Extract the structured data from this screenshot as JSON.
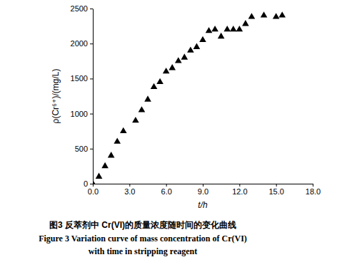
{
  "chart_data": {
    "type": "scatter",
    "title": "图3 反萃剂中 Cr(VI)的质量浓度随时间的变化曲线",
    "subtitle": "Figure 3 Variation curve of mass concentration of Cr(VI) with time in stripping reagent",
    "x_label": "t/h",
    "y_label": "ρ(Cr⁶⁺)/(mg/L)",
    "x": [
      0.0,
      0.5,
      1.0,
      1.5,
      2.0,
      2.5,
      3.5,
      4.0,
      4.5,
      5.0,
      5.5,
      6.0,
      6.5,
      7.0,
      7.5,
      8.0,
      8.5,
      9.0,
      9.5,
      10.0,
      10.5,
      11.0,
      11.5,
      12.0,
      12.5,
      13.0,
      14.0,
      15.0,
      15.5
    ],
    "values": [
      0,
      100,
      250,
      400,
      600,
      750,
      900,
      1050,
      1200,
      1380,
      1450,
      1600,
      1650,
      1750,
      1800,
      1900,
      1950,
      2050,
      2180,
      2200,
      2100,
      2200,
      2200,
      2200,
      2280,
      2380,
      2400,
      2380,
      2400
    ],
    "color": "#000000",
    "marker": "triangle",
    "xlim": [
      0,
      18
    ],
    "xticks": [
      {
        "value": 0,
        "label": "0.0"
      },
      {
        "value": 3,
        "label": "3.0"
      },
      {
        "value": 6,
        "label": "6.0"
      },
      {
        "value": 9,
        "label": "9.0"
      },
      {
        "value": 12,
        "label": "12.0"
      },
      {
        "value": 15,
        "label": "15.0"
      },
      {
        "value": 18,
        "label": "18.0"
      }
    ],
    "ylim": [
      0,
      2500
    ],
    "yticks": [
      0,
      500,
      1000,
      1500,
      2000,
      2500
    ],
    "grid": false
  }
}
